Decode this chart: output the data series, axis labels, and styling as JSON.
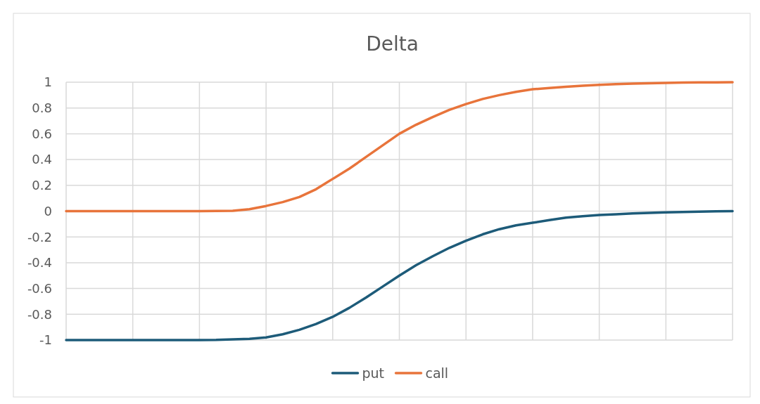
{
  "chart_data": {
    "type": "line",
    "title": "Delta",
    "categories": [
      null,
      null,
      null,
      null,
      null,
      null,
      null,
      null,
      null,
      null,
      null,
      null,
      null,
      null,
      null,
      null,
      null,
      null,
      null,
      null,
      null,
      null,
      null,
      null,
      null,
      null,
      null,
      null,
      null,
      null,
      null,
      null,
      null,
      null,
      null,
      null,
      null,
      null,
      null,
      null,
      null
    ],
    "series": [
      {
        "name": "put",
        "color": "#1d5b79",
        "values": [
          -1,
          -1,
          -1,
          -1,
          -1,
          -1,
          -1,
          -1,
          -1,
          -0.999,
          -0.995,
          -0.99,
          -0.98,
          -0.955,
          -0.92,
          -0.875,
          -0.82,
          -0.75,
          -0.67,
          -0.585,
          -0.5,
          -0.42,
          -0.35,
          -0.285,
          -0.23,
          -0.18,
          -0.14,
          -0.11,
          -0.09,
          -0.07,
          -0.05,
          -0.04,
          -0.03,
          -0.024,
          -0.018,
          -0.013,
          -0.01,
          -0.007,
          -0.004,
          -0.002,
          0
        ]
      },
      {
        "name": "call",
        "color": "#e8743b",
        "values": [
          0,
          0,
          0,
          0,
          0,
          0,
          0,
          0,
          0,
          0.001,
          0.003,
          0.015,
          0.04,
          0.07,
          0.11,
          0.17,
          0.25,
          0.33,
          0.42,
          0.51,
          0.6,
          0.67,
          0.73,
          0.785,
          0.83,
          0.87,
          0.9,
          0.925,
          0.945,
          0.955,
          0.965,
          0.973,
          0.98,
          0.985,
          0.989,
          0.992,
          0.995,
          0.997,
          0.998,
          0.999,
          1
        ]
      }
    ],
    "ylim": [
      -1,
      1
    ],
    "yticks": [
      -1,
      -0.8,
      -0.6,
      -0.4,
      -0.2,
      0,
      0.2,
      0.4,
      0.6,
      0.8,
      1
    ],
    "grid": true,
    "legend": "bottom",
    "marker": "none",
    "line_style": "solid"
  }
}
